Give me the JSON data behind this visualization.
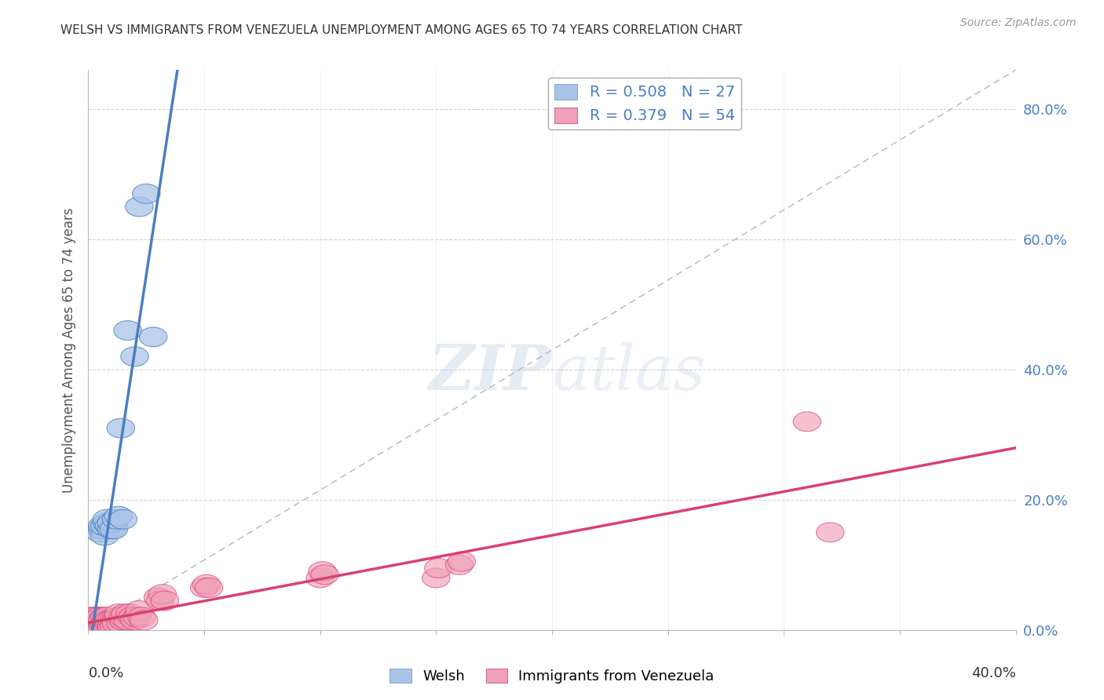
{
  "title": "WELSH VS IMMIGRANTS FROM VENEZUELA UNEMPLOYMENT AMONG AGES 65 TO 74 YEARS CORRELATION CHART",
  "source": "Source: ZipAtlas.com",
  "legend_label1": "Welsh",
  "legend_label2": "Immigrants from Venezuela",
  "R1": "0.508",
  "N1": "27",
  "R2": "0.379",
  "N2": "54",
  "blue_color": "#aac4e8",
  "blue_line_color": "#4a7fc1",
  "pink_color": "#f0a0b8",
  "pink_line_color": "#d94070",
  "watermark": "ZIPatlas",
  "welsh_x": [
    0.001,
    0.002,
    0.002,
    0.003,
    0.004,
    0.004,
    0.005,
    0.005,
    0.006,
    0.006,
    0.007,
    0.007,
    0.008,
    0.008,
    0.009,
    0.01,
    0.01,
    0.011,
    0.012,
    0.013,
    0.014,
    0.015,
    0.017,
    0.02,
    0.022,
    0.025,
    0.028
  ],
  "welsh_y": [
    0.005,
    0.01,
    0.015,
    0.01,
    0.015,
    0.02,
    0.01,
    0.15,
    0.155,
    0.16,
    0.145,
    0.16,
    0.165,
    0.17,
    0.16,
    0.155,
    0.165,
    0.155,
    0.17,
    0.175,
    0.31,
    0.17,
    0.46,
    0.42,
    0.65,
    0.67,
    0.45
  ],
  "venez_x": [
    0.001,
    0.001,
    0.002,
    0.002,
    0.003,
    0.003,
    0.004,
    0.004,
    0.005,
    0.005,
    0.006,
    0.006,
    0.007,
    0.007,
    0.008,
    0.008,
    0.009,
    0.009,
    0.01,
    0.01,
    0.011,
    0.011,
    0.012,
    0.012,
    0.013,
    0.013,
    0.014,
    0.015,
    0.015,
    0.016,
    0.017,
    0.018,
    0.019,
    0.02,
    0.021,
    0.022,
    0.023,
    0.024,
    0.03,
    0.031,
    0.032,
    0.033,
    0.05,
    0.051,
    0.052,
    0.1,
    0.101,
    0.102,
    0.15,
    0.151,
    0.16,
    0.161,
    0.31,
    0.32
  ],
  "venez_y": [
    0.01,
    0.02,
    0.01,
    0.015,
    0.01,
    0.02,
    0.015,
    0.01,
    0.015,
    0.02,
    0.01,
    0.015,
    0.02,
    0.01,
    0.015,
    0.02,
    0.01,
    0.015,
    0.005,
    0.015,
    0.015,
    0.005,
    0.015,
    0.01,
    0.02,
    0.025,
    0.01,
    0.015,
    0.02,
    0.025,
    0.015,
    0.025,
    0.02,
    0.015,
    0.02,
    0.03,
    0.02,
    0.015,
    0.05,
    0.045,
    0.055,
    0.045,
    0.065,
    0.07,
    0.065,
    0.08,
    0.09,
    0.085,
    0.08,
    0.095,
    0.1,
    0.105,
    0.32,
    0.15
  ],
  "xmin": 0.0,
  "xmax": 0.4,
  "ymin": 0.0,
  "ymax": 0.86,
  "ylabel_right_ticks": [
    "0.0%",
    "20.0%",
    "40.0%",
    "60.0%",
    "80.0%"
  ],
  "ylabel_right_vals": [
    0.0,
    0.2,
    0.4,
    0.6,
    0.8
  ],
  "ylabel": "Unemployment Among Ages 65 to 74 years"
}
